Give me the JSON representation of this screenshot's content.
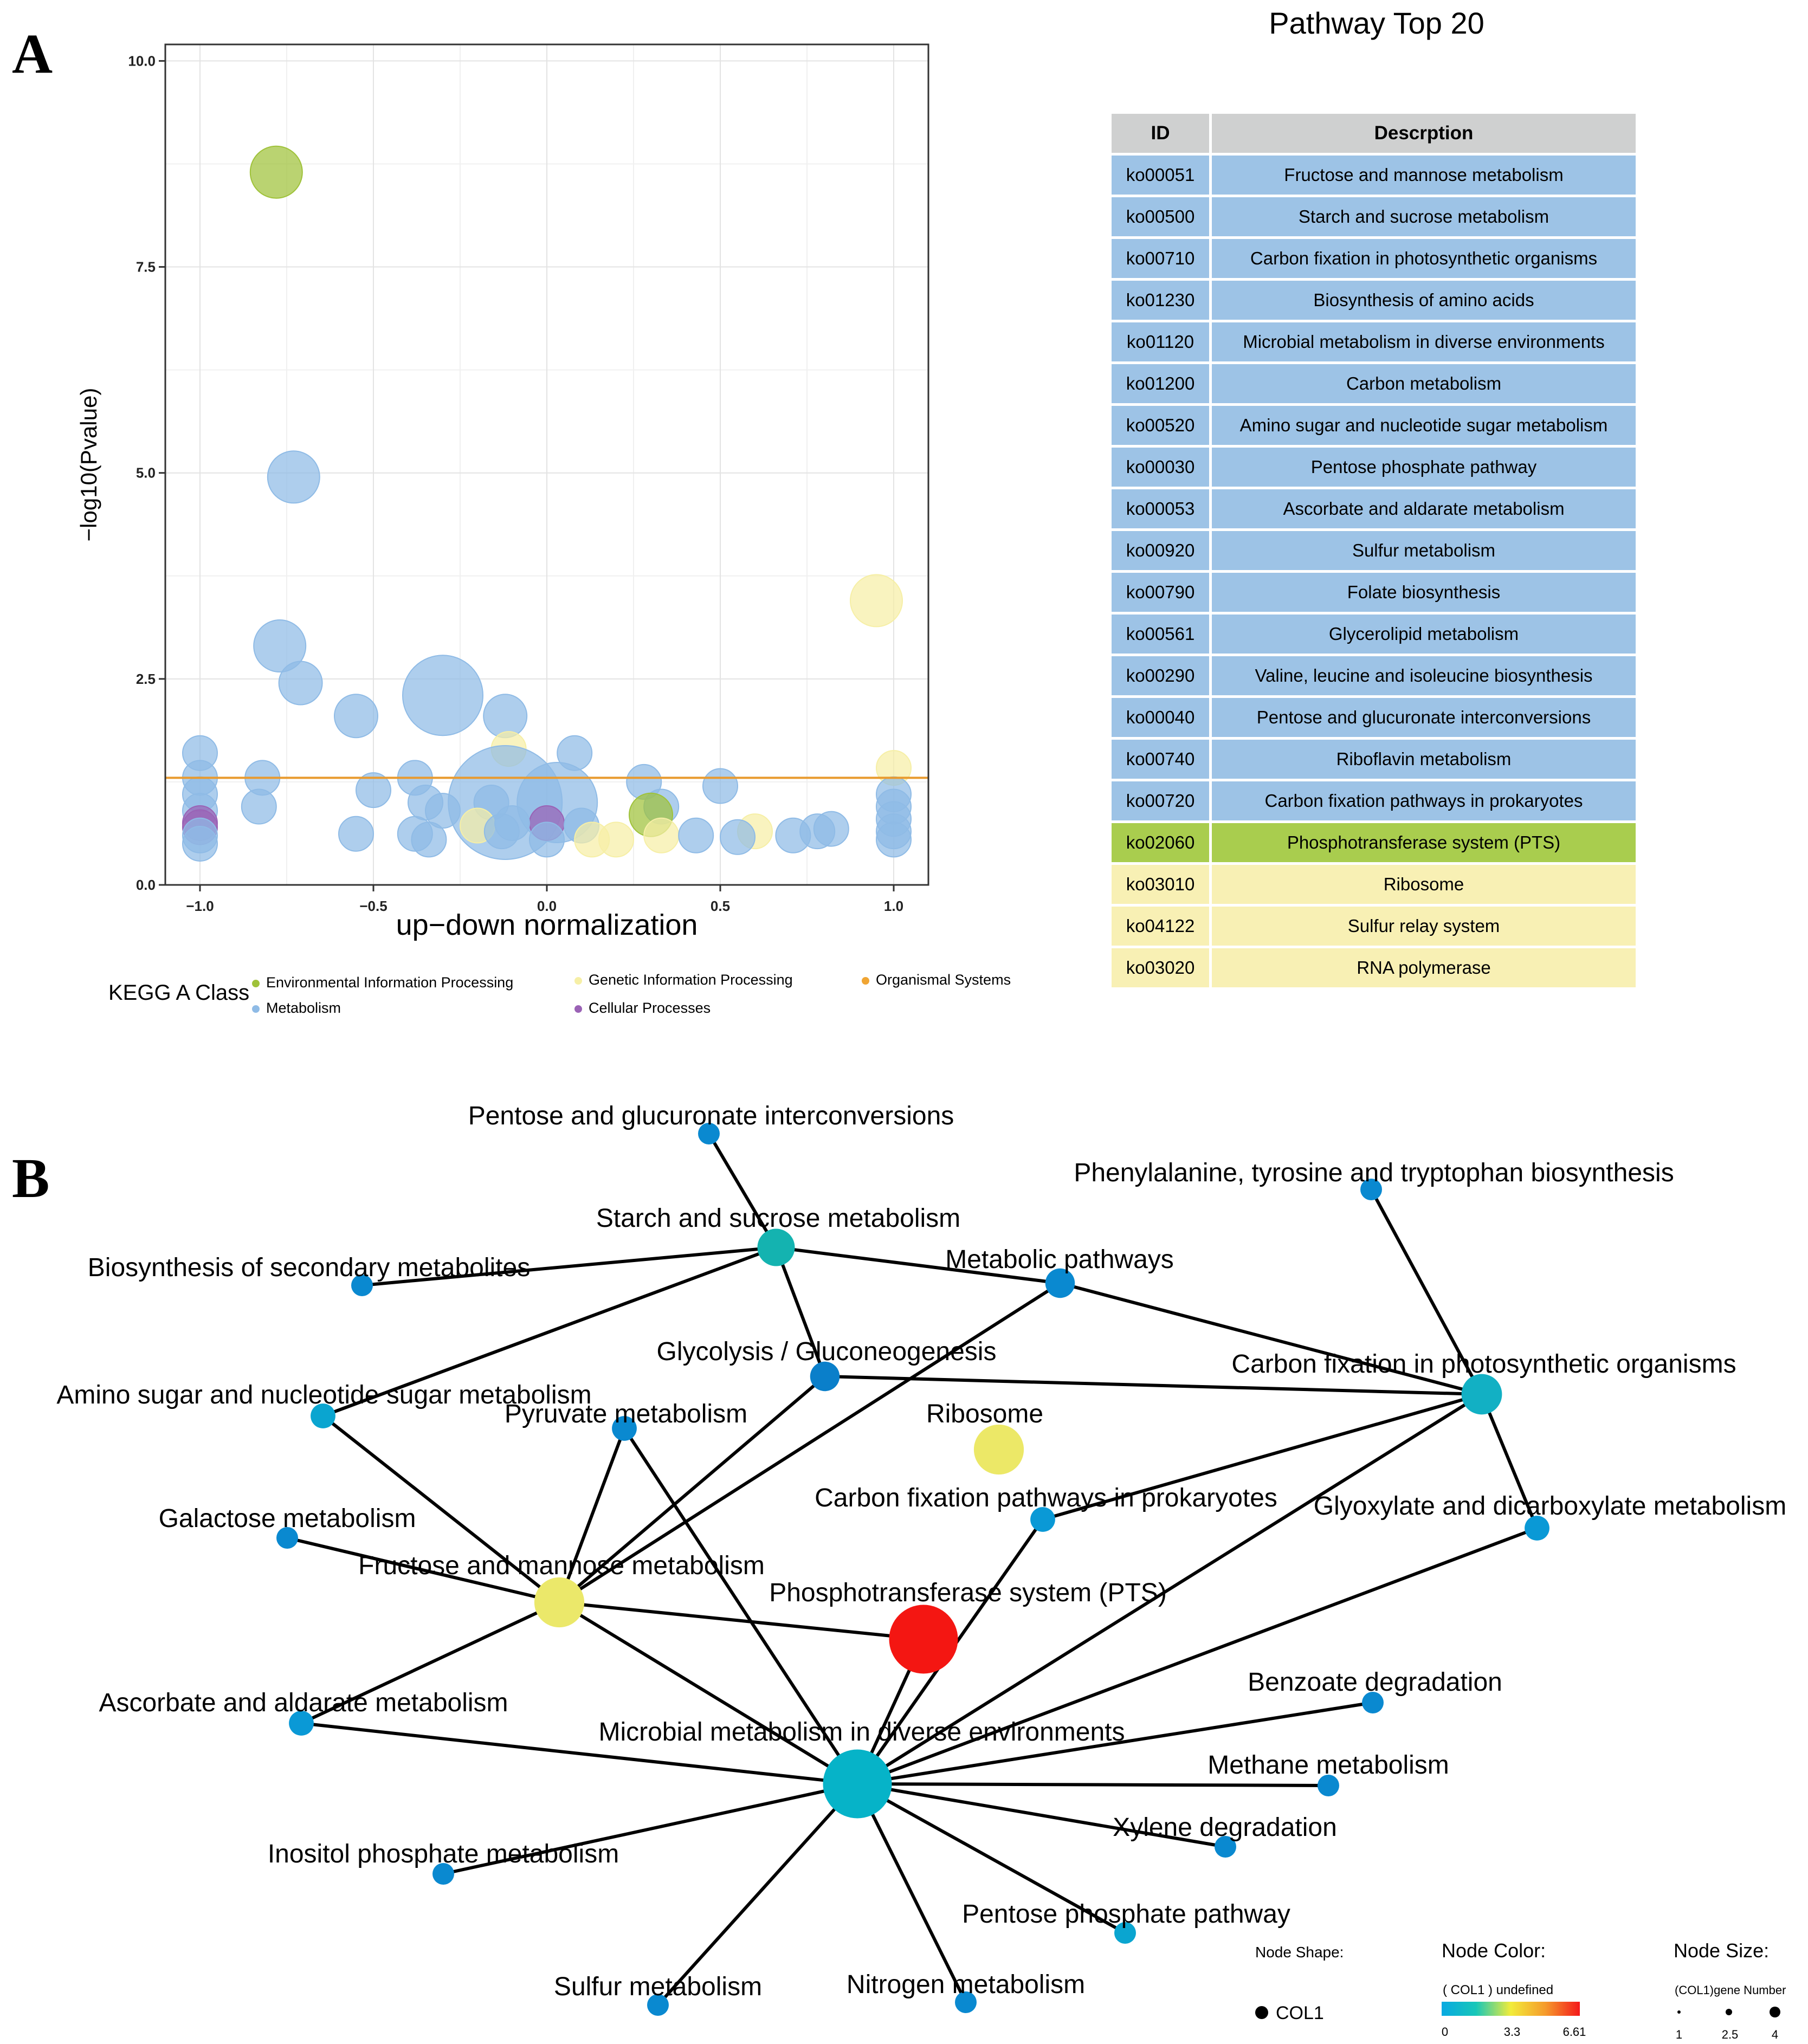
{
  "panel_a_label": "A",
  "panel_b_label": "B",
  "colors": {
    "Environmental Information Processing": "#9fc23a",
    "Metabolism": "#8fbbe6",
    "Genetic Information Processing": "#f6efa6",
    "Cellular Processes": "#9a62b5",
    "Organismal Systems": "#f0a533",
    "threshold_line": "#e89a2e"
  },
  "chart_data": [
    {
      "type": "scatter",
      "title": "",
      "xlabel": "up−down normalization",
      "ylabel": "−log10(Pvalue)",
      "xlim": [
        -1.1,
        1.1
      ],
      "ylim": [
        0,
        10.2
      ],
      "x_ticks": [
        -1.0,
        -0.5,
        0.0,
        0.5,
        1.0
      ],
      "x_tick_labels": [
        "−1.0",
        "−0.5",
        "0.0",
        "0.5",
        "1.0"
      ],
      "y_ticks": [
        0,
        2.5,
        5.0,
        7.5,
        10.0
      ],
      "y_tick_labels": [
        "0.0",
        "2.5",
        "5.0",
        "7.5",
        "10.0"
      ],
      "threshold": 1.3,
      "grid": true,
      "legend": {
        "title": "KEGG A Class",
        "items": [
          {
            "label": "Environmental Information Processing",
            "color": "#9fc23a"
          },
          {
            "label": "Genetic Information Processing",
            "color": "#f6efa6"
          },
          {
            "label": "Organismal Systems",
            "color": "#f0a533"
          },
          {
            "label": "Metabolism",
            "color": "#8fbbe6"
          },
          {
            "label": "Cellular Processes",
            "color": "#9a62b5"
          }
        ]
      },
      "points": [
        {
          "x": -0.78,
          "y": 8.65,
          "s": 3,
          "c": "Environmental Information Processing"
        },
        {
          "x": -0.73,
          "y": 4.95,
          "s": 3,
          "c": "Metabolism"
        },
        {
          "x": 0.95,
          "y": 3.45,
          "s": 3,
          "c": "Genetic Information Processing"
        },
        {
          "x": -0.77,
          "y": 2.9,
          "s": 3,
          "c": "Metabolism"
        },
        {
          "x": -0.71,
          "y": 2.45,
          "s": 2,
          "c": "Metabolism"
        },
        {
          "x": -0.3,
          "y": 2.3,
          "s": 5,
          "c": "Metabolism"
        },
        {
          "x": -0.55,
          "y": 2.05,
          "s": 2,
          "c": "Metabolism"
        },
        {
          "x": -0.12,
          "y": 2.05,
          "s": 2,
          "c": "Metabolism"
        },
        {
          "x": -1.0,
          "y": 1.6,
          "s": 1,
          "c": "Metabolism"
        },
        {
          "x": 0.08,
          "y": 1.6,
          "s": 1,
          "c": "Metabolism"
        },
        {
          "x": -0.11,
          "y": 1.65,
          "s": 1,
          "c": "Genetic Information Processing"
        },
        {
          "x": 1.0,
          "y": 1.42,
          "s": 1,
          "c": "Genetic Information Processing"
        },
        {
          "x": -1.0,
          "y": 1.3,
          "s": 1,
          "c": "Metabolism"
        },
        {
          "x": -0.82,
          "y": 1.3,
          "s": 1,
          "c": "Metabolism"
        },
        {
          "x": -0.38,
          "y": 1.3,
          "s": 1,
          "c": "Metabolism"
        },
        {
          "x": 0.28,
          "y": 1.25,
          "s": 1,
          "c": "Metabolism"
        },
        {
          "x": 0.5,
          "y": 1.2,
          "s": 1,
          "c": "Metabolism"
        },
        {
          "x": -0.5,
          "y": 1.15,
          "s": 1,
          "c": "Metabolism"
        },
        {
          "x": -1.0,
          "y": 1.1,
          "s": 1,
          "c": "Metabolism"
        },
        {
          "x": 1.0,
          "y": 1.1,
          "s": 1,
          "c": "Metabolism"
        },
        {
          "x": -0.12,
          "y": 1.0,
          "s": 6,
          "c": "Metabolism"
        },
        {
          "x": 0.03,
          "y": 1.0,
          "s": 5,
          "c": "Metabolism"
        },
        {
          "x": -0.35,
          "y": 1.0,
          "s": 1,
          "c": "Metabolism"
        },
        {
          "x": -0.16,
          "y": 1.0,
          "s": 1,
          "c": "Metabolism"
        },
        {
          "x": -0.83,
          "y": 0.95,
          "s": 1,
          "c": "Metabolism"
        },
        {
          "x": 1.0,
          "y": 0.95,
          "s": 1,
          "c": "Metabolism"
        },
        {
          "x": -1.0,
          "y": 0.9,
          "s": 1,
          "c": "Metabolism"
        },
        {
          "x": -0.3,
          "y": 0.9,
          "s": 1,
          "c": "Metabolism"
        },
        {
          "x": 0.33,
          "y": 0.95,
          "s": 1,
          "c": "Metabolism"
        },
        {
          "x": 0.3,
          "y": 0.85,
          "s": 2,
          "c": "Environmental Information Processing"
        },
        {
          "x": 1.0,
          "y": 0.8,
          "s": 1,
          "c": "Metabolism"
        },
        {
          "x": -1.0,
          "y": 0.75,
          "s": 1,
          "c": "Cellular Processes"
        },
        {
          "x": 0.0,
          "y": 0.75,
          "s": 1,
          "c": "Cellular Processes"
        },
        {
          "x": -1.0,
          "y": 0.7,
          "s": 1,
          "c": "Cellular Processes"
        },
        {
          "x": -0.2,
          "y": 0.72,
          "s": 1,
          "c": "Genetic Information Processing"
        },
        {
          "x": -0.1,
          "y": 0.75,
          "s": 1,
          "c": "Metabolism"
        },
        {
          "x": 0.1,
          "y": 0.72,
          "s": 1,
          "c": "Metabolism"
        },
        {
          "x": -0.55,
          "y": 0.62,
          "s": 1,
          "c": "Metabolism"
        },
        {
          "x": -0.38,
          "y": 0.62,
          "s": 1,
          "c": "Metabolism"
        },
        {
          "x": -0.13,
          "y": 0.65,
          "s": 1,
          "c": "Metabolism"
        },
        {
          "x": 0.6,
          "y": 0.65,
          "s": 1,
          "c": "Genetic Information Processing"
        },
        {
          "x": 0.78,
          "y": 0.65,
          "s": 1,
          "c": "Metabolism"
        },
        {
          "x": 0.82,
          "y": 0.68,
          "s": 1,
          "c": "Metabolism"
        },
        {
          "x": 1.0,
          "y": 0.65,
          "s": 1,
          "c": "Metabolism"
        },
        {
          "x": -1.0,
          "y": 0.6,
          "s": 1,
          "c": "Metabolism"
        },
        {
          "x": -0.34,
          "y": 0.55,
          "s": 1,
          "c": "Metabolism"
        },
        {
          "x": 0.0,
          "y": 0.55,
          "s": 1,
          "c": "Metabolism"
        },
        {
          "x": 0.2,
          "y": 0.55,
          "s": 1,
          "c": "Genetic Information Processing"
        },
        {
          "x": 0.33,
          "y": 0.6,
          "s": 1,
          "c": "Genetic Information Processing"
        },
        {
          "x": 0.43,
          "y": 0.6,
          "s": 1,
          "c": "Metabolism"
        },
        {
          "x": 0.55,
          "y": 0.58,
          "s": 1,
          "c": "Metabolism"
        },
        {
          "x": 0.71,
          "y": 0.6,
          "s": 1,
          "c": "Metabolism"
        },
        {
          "x": -1.0,
          "y": 0.5,
          "s": 1,
          "c": "Metabolism"
        },
        {
          "x": 0.13,
          "y": 0.55,
          "s": 1,
          "c": "Genetic Information Processing"
        },
        {
          "x": 1.0,
          "y": 0.55,
          "s": 1,
          "c": "Metabolism"
        }
      ]
    },
    {
      "type": "table",
      "title": "Pathway Top 20",
      "columns": [
        "ID",
        "Descrption"
      ],
      "rows": [
        {
          "id": "ko00051",
          "desc": "Fructose and mannose metabolism",
          "c": "Metabolism"
        },
        {
          "id": "ko00500",
          "desc": "Starch and sucrose metabolism",
          "c": "Metabolism"
        },
        {
          "id": "ko00710",
          "desc": "Carbon fixation in photosynthetic organisms",
          "c": "Metabolism"
        },
        {
          "id": "ko01230",
          "desc": "Biosynthesis of amino acids",
          "c": "Metabolism"
        },
        {
          "id": "ko01120",
          "desc": "Microbial metabolism in diverse environments",
          "c": "Metabolism"
        },
        {
          "id": "ko01200",
          "desc": "Carbon metabolism",
          "c": "Metabolism"
        },
        {
          "id": "ko00520",
          "desc": "Amino sugar and nucleotide sugar metabolism",
          "c": "Metabolism"
        },
        {
          "id": "ko00030",
          "desc": "Pentose phosphate pathway",
          "c": "Metabolism"
        },
        {
          "id": "ko00053",
          "desc": "Ascorbate and aldarate metabolism",
          "c": "Metabolism"
        },
        {
          "id": "ko00920",
          "desc": "Sulfur metabolism",
          "c": "Metabolism"
        },
        {
          "id": "ko00790",
          "desc": "Folate biosynthesis",
          "c": "Metabolism"
        },
        {
          "id": "ko00561",
          "desc": "Glycerolipid metabolism",
          "c": "Metabolism"
        },
        {
          "id": "ko00290",
          "desc": "Valine, leucine and isoleucine biosynthesis",
          "c": "Metabolism"
        },
        {
          "id": "ko00040",
          "desc": "Pentose and glucuronate interconversions",
          "c": "Metabolism"
        },
        {
          "id": "ko00740",
          "desc": "Riboflavin metabolism",
          "c": "Metabolism"
        },
        {
          "id": "ko00720",
          "desc": "Carbon fixation pathways in prokaryotes",
          "c": "Metabolism"
        },
        {
          "id": "ko02060",
          "desc": "Phosphotransferase system (PTS)",
          "c": "Environmental Information Processing"
        },
        {
          "id": "ko03010",
          "desc": "Ribosome",
          "c": "Genetic Information Processing"
        },
        {
          "id": "ko04122",
          "desc": "Sulfur relay system",
          "c": "Genetic Information Processing"
        },
        {
          "id": "ko03020",
          "desc": "RNA polymerase",
          "c": "Genetic Information Processing"
        }
      ]
    },
    {
      "type": "network",
      "title": "",
      "nodes": [
        {
          "id": "pentose_gluc",
          "label": "Pentose and glucuronate interconversions",
          "genes": 1,
          "color": "#0a89d0"
        },
        {
          "id": "phenylalanine",
          "label": "Phenylalanine, tyrosine and tryptophan biosynthesis",
          "genes": 1,
          "color": "#0a89d0"
        },
        {
          "id": "starch",
          "label": "Starch and sucrose metabolism",
          "genes": 2,
          "color": "#14b3b0"
        },
        {
          "id": "secondary",
          "label": "Biosynthesis of secondary metabolites",
          "genes": 1,
          "color": "#0a89d0"
        },
        {
          "id": "metabolic",
          "label": "Metabolic pathways",
          "genes": 1.5,
          "color": "#0a89d0"
        },
        {
          "id": "glycolysis",
          "label": "Glycolysis / Gluconeogenesis",
          "genes": 1.5,
          "color": "#0a7fca"
        },
        {
          "id": "carbon_photo",
          "label": "Carbon fixation in photosynthetic organisms",
          "genes": 2.2,
          "color": "#12b0c4"
        },
        {
          "id": "amino_sugar",
          "label": "Amino sugar and nucleotide sugar metabolism",
          "genes": 1.2,
          "color": "#0aa5d0"
        },
        {
          "id": "pyruvate",
          "label": "Pyruvate metabolism",
          "genes": 1.2,
          "color": "#0a89d0"
        },
        {
          "id": "ribosome",
          "label": "Ribosome",
          "genes": 2.8,
          "color": "#ece867"
        },
        {
          "id": "carbon_prok",
          "label": "Carbon fixation pathways in prokaryotes",
          "genes": 1.2,
          "color": "#0a99d6"
        },
        {
          "id": "glyoxylate",
          "label": "Glyoxylate and dicarboxylate metabolism",
          "genes": 1.2,
          "color": "#0a99d6"
        },
        {
          "id": "galactose",
          "label": "Galactose metabolism",
          "genes": 1,
          "color": "#0a89d0"
        },
        {
          "id": "fructose",
          "label": "Fructose and mannose metabolism",
          "genes": 2.8,
          "color": "#ebe86a"
        },
        {
          "id": "pts",
          "label": "Phosphotransferase system (PTS)",
          "genes": 4,
          "color": "#f41612"
        },
        {
          "id": "ascorbate",
          "label": "Ascorbate and aldarate metabolism",
          "genes": 1.2,
          "color": "#0a99d6"
        },
        {
          "id": "benzoate",
          "label": "Benzoate degradation",
          "genes": 1,
          "color": "#0a89d0"
        },
        {
          "id": "microbial",
          "label": "Microbial metabolism in diverse environments",
          "genes": 4,
          "color": "#06b3c8"
        },
        {
          "id": "methane",
          "label": "Methane metabolism",
          "genes": 1,
          "color": "#0a89d0"
        },
        {
          "id": "xylene",
          "label": "Xylene degradation",
          "genes": 1,
          "color": "#0a89d0"
        },
        {
          "id": "inositol",
          "label": "Inositol phosphate metabolism",
          "genes": 1,
          "color": "#0a89d0"
        },
        {
          "id": "pentose_phos",
          "label": "Pentose phosphate pathway",
          "genes": 1,
          "color": "#0aa5d0"
        },
        {
          "id": "sulfur",
          "label": "Sulfur metabolism",
          "genes": 1,
          "color": "#0a89d0"
        },
        {
          "id": "nitrogen",
          "label": "Nitrogen metabolism",
          "genes": 1,
          "color": "#0a89d0"
        }
      ],
      "edges": [
        [
          "pentose_gluc",
          "starch"
        ],
        [
          "secondary",
          "starch"
        ],
        [
          "starch",
          "metabolic"
        ],
        [
          "starch",
          "glycolysis"
        ],
        [
          "starch",
          "amino_sugar"
        ],
        [
          "metabolic",
          "carbon_photo"
        ],
        [
          "glycolysis",
          "carbon_photo"
        ],
        [
          "phenylalanine",
          "carbon_photo"
        ],
        [
          "carbon_photo",
          "carbon_prok"
        ],
        [
          "carbon_photo",
          "glyoxylate"
        ],
        [
          "carbon_photo",
          "microbial"
        ],
        [
          "amino_sugar",
          "fructose"
        ],
        [
          "pyruvate",
          "fructose"
        ],
        [
          "pyruvate",
          "microbial"
        ],
        [
          "glycolysis",
          "fructose"
        ],
        [
          "metabolic",
          "fructose"
        ],
        [
          "galactose",
          "fructose"
        ],
        [
          "fructose",
          "pts"
        ],
        [
          "fructose",
          "ascorbate"
        ],
        [
          "fructose",
          "microbial"
        ],
        [
          "carbon_prok",
          "microbial"
        ],
        [
          "glyoxylate",
          "microbial"
        ],
        [
          "ascorbate",
          "microbial"
        ],
        [
          "benzoate",
          "microbial"
        ],
        [
          "methane",
          "microbial"
        ],
        [
          "xylene",
          "microbial"
        ],
        [
          "inositol",
          "microbial"
        ],
        [
          "pentose_phos",
          "microbial"
        ],
        [
          "sulfur",
          "microbial"
        ],
        [
          "nitrogen",
          "microbial"
        ],
        [
          "pts",
          "microbial"
        ]
      ],
      "legend": {
        "shape_title": "Node Shape:",
        "shape_label": "COL1",
        "color_title": "Node Color:",
        "color_subtitle": "( COL1 ) undefined",
        "color_ticks": [
          "0",
          "3.3",
          "6.61"
        ],
        "color_stops": [
          "#07a9e2",
          "#18c7b8",
          "#f2ec3a",
          "#f59b2c",
          "#f4181a"
        ],
        "size_title": "Node Size:",
        "size_subtitle": "(COL1)gene Number",
        "size_ticks": [
          "1",
          "2.5",
          "4"
        ]
      }
    }
  ]
}
